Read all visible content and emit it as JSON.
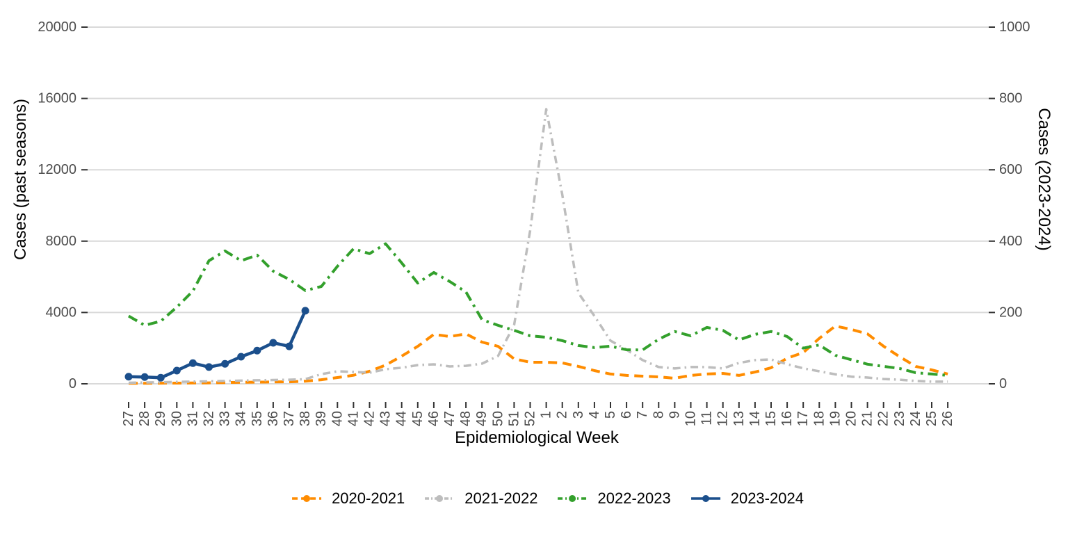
{
  "chart_data": {
    "type": "line",
    "title": "",
    "xlabel": "Epidemiological Week",
    "grid": "horizontal-major-only",
    "legend_position": "bottom-center",
    "background": "#ffffff",
    "grid_color": "#d9d9d9",
    "tick_color": "#333333",
    "tick_label_color": "#4d4d4d",
    "x_categories": [
      "27",
      "28",
      "29",
      "30",
      "31",
      "32",
      "33",
      "34",
      "35",
      "36",
      "37",
      "38",
      "39",
      "40",
      "41",
      "42",
      "43",
      "44",
      "45",
      "46",
      "47",
      "48",
      "49",
      "50",
      "51",
      "52",
      "1",
      "2",
      "3",
      "4",
      "5",
      "6",
      "7",
      "8",
      "9",
      "10",
      "11",
      "12",
      "13",
      "14",
      "15",
      "16",
      "17",
      "18",
      "19",
      "20",
      "21",
      "22",
      "23",
      "24",
      "25",
      "26"
    ],
    "left_axis": {
      "label": "Cases (past seasons)",
      "ticks": [
        0,
        4000,
        8000,
        12000,
        16000,
        20000
      ],
      "range": [
        0,
        20000
      ]
    },
    "right_axis": {
      "label": "Cases (2023-2024)",
      "ticks": [
        0,
        200,
        400,
        600,
        800,
        1000
      ],
      "range": [
        0,
        1000
      ]
    },
    "series": [
      {
        "name": "2020-2021",
        "axis": "left",
        "color": "#FF8C00",
        "dash": "13 8",
        "legend_dash": "8 5",
        "width": 4,
        "marker": "none",
        "values": [
          30,
          30,
          35,
          40,
          45,
          55,
          70,
          85,
          95,
          105,
          115,
          150,
          230,
          350,
          480,
          700,
          1050,
          1550,
          2100,
          2770,
          2650,
          2800,
          2340,
          2100,
          1400,
          1210,
          1210,
          1170,
          980,
          740,
          550,
          470,
          430,
          390,
          310,
          470,
          550,
          585,
          470,
          660,
          900,
          1440,
          1750,
          2550,
          3240,
          3050,
          2800,
          2110,
          1520,
          980,
          780,
          550
        ]
      },
      {
        "name": "2021-2022",
        "axis": "left",
        "color": "#BDBDBD",
        "dash": "11 6 2.5 6",
        "legend_dash": "6 3 2 3",
        "width": 3.5,
        "marker": "none",
        "values": [
          60,
          75,
          90,
          110,
          125,
          140,
          160,
          180,
          200,
          215,
          230,
          260,
          540,
          700,
          665,
          625,
          820,
          900,
          1050,
          1090,
          975,
          1010,
          1130,
          1560,
          3300,
          8600,
          15400,
          10600,
          5100,
          3800,
          2420,
          1910,
          1330,
          940,
          860,
          940,
          940,
          860,
          1170,
          1330,
          1365,
          1100,
          870,
          700,
          530,
          400,
          350,
          270,
          230,
          160,
          120,
          120
        ]
      },
      {
        "name": "2022-2023",
        "axis": "left",
        "color": "#33A02C",
        "dash": "14 7 3.5 7",
        "legend_dash": "7 4 2 4",
        "width": 4,
        "marker": "none",
        "values": [
          3800,
          3280,
          3510,
          4300,
          5200,
          6900,
          7450,
          6900,
          7215,
          6320,
          5850,
          5230,
          5460,
          6590,
          7570,
          7300,
          7850,
          6780,
          5650,
          6240,
          5730,
          5150,
          3600,
          3280,
          3000,
          2690,
          2610,
          2420,
          2150,
          2030,
          2110,
          1910,
          1900,
          2500,
          2930,
          2690,
          3160,
          3000,
          2460,
          2770,
          2930,
          2650,
          2000,
          2180,
          1600,
          1350,
          1100,
          980,
          860,
          620,
          550,
          470
        ]
      },
      {
        "name": "2023-2024",
        "axis": "right",
        "color": "#1B4F8C",
        "dash": "solid",
        "legend_dash": "solid",
        "width": 4.5,
        "marker": "circle",
        "values": [
          20,
          19,
          17,
          37,
          58,
          47,
          56,
          76,
          93,
          115,
          105,
          205,
          null,
          null,
          null,
          null,
          null,
          null,
          null,
          null,
          null,
          null,
          null,
          null,
          null,
          null,
          null,
          null,
          null,
          null,
          null,
          null,
          null,
          null,
          null,
          null,
          null,
          null,
          null,
          null,
          null,
          null,
          null,
          null,
          null,
          null,
          null,
          null,
          null,
          null,
          null,
          null
        ]
      }
    ]
  }
}
